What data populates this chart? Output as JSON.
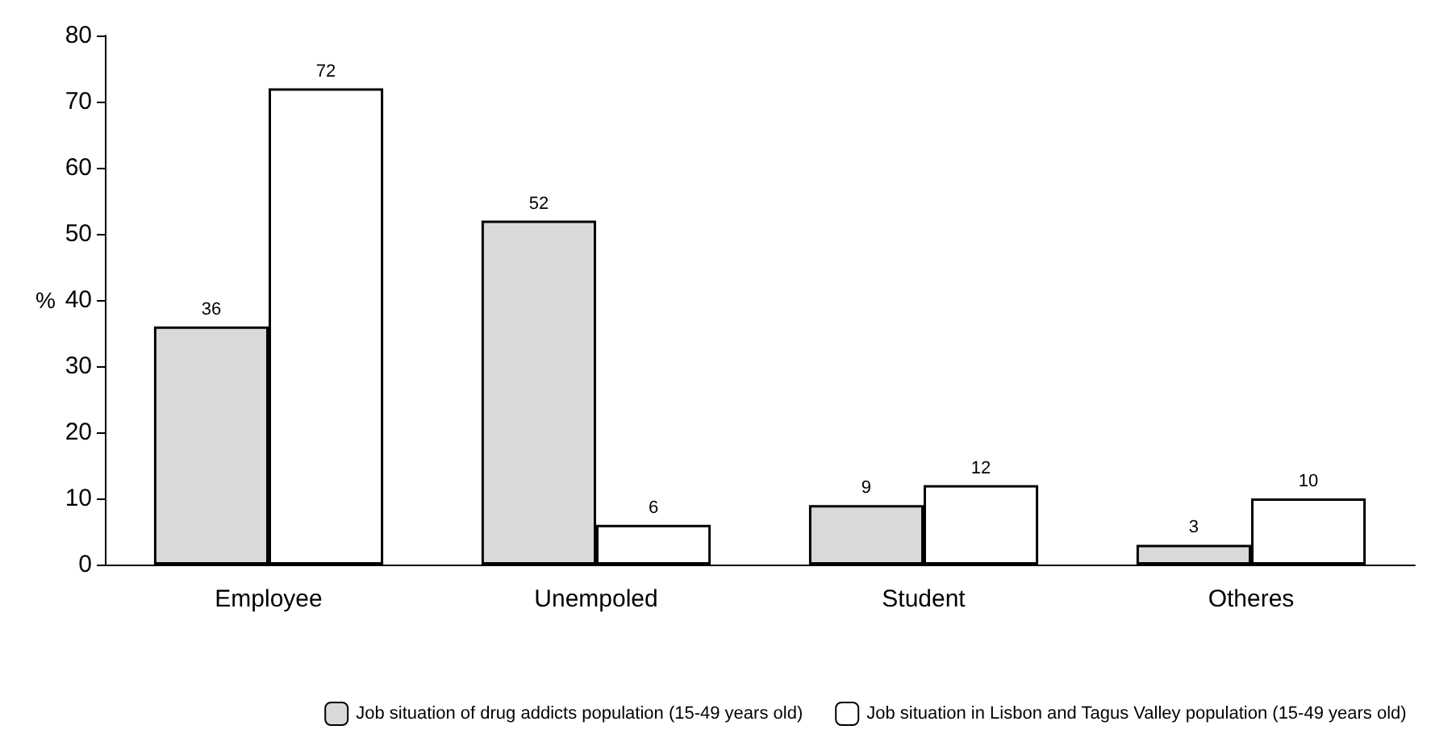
{
  "chart_data": {
    "type": "bar",
    "ylabel": "%",
    "categories": [
      "Employee",
      "Unempoled",
      "Student",
      "Otheres"
    ],
    "series": [
      {
        "name": "Job situation of drug addicts population (15-49 years old)",
        "color": "#d9d9d9",
        "values": [
          36,
          52,
          9,
          3
        ]
      },
      {
        "name": "Job situation in Lisbon and Tagus Valley population (15-49 years old)",
        "color": "#ffffff",
        "values": [
          72,
          6,
          12,
          10
        ]
      }
    ],
    "ylim": [
      0,
      80
    ],
    "yticks": [
      0,
      10,
      20,
      30,
      40,
      50,
      60,
      70,
      80
    ],
    "data_labels": true,
    "grid": false,
    "legend": "bottom"
  }
}
